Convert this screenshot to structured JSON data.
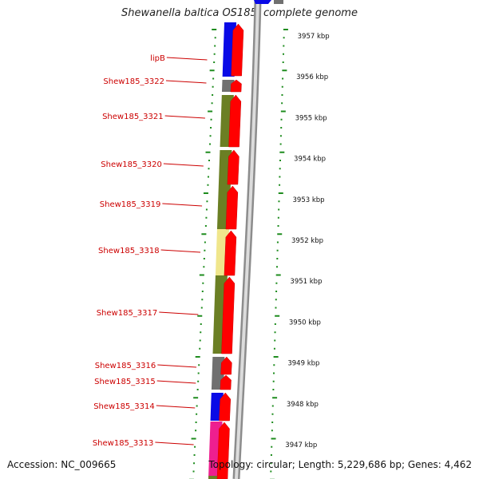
{
  "title": "Shewanella baltica OS185, complete genome",
  "accession_text": "Accession: NC_009665",
  "topology_text": "Topology: circular; Length: 5,229,686 bp; Genes: 4,462",
  "colors": {
    "blue": "#0a0ae6",
    "grey": "#707070",
    "olive": "#6b7f24",
    "khaki": "#f0e68c",
    "magenta": "#ee1f8f",
    "red": "#ff0000",
    "label_red": "#cc0000",
    "tick_green": "#1e8c1e"
  },
  "scale_ticks": [
    "3957 kbp",
    "3956 kbp",
    "3955 kbp",
    "3954 kbp",
    "3953 kbp",
    "3952 kbp",
    "3951 kbp",
    "3950 kbp",
    "3949 kbp",
    "3948 kbp",
    "3947 kbp"
  ],
  "genes": [
    {
      "label": "lipB",
      "color": "blue"
    },
    {
      "label": "Shew185_3322",
      "color": "grey"
    },
    {
      "label": "Shew185_3321",
      "color": "olive"
    },
    {
      "label": "Shew185_3320",
      "color": "olive"
    },
    {
      "label": "Shew185_3319",
      "color": "olive"
    },
    {
      "label": "Shew185_3318",
      "color": "khaki"
    },
    {
      "label": "Shew185_3317",
      "color": "olive"
    },
    {
      "label": "Shew185_3316",
      "color": "grey"
    },
    {
      "label": "Shew185_3315",
      "color": "grey"
    },
    {
      "label": "Shew185_3314",
      "color": "blue"
    },
    {
      "label": "Shew185_3313",
      "color": "magenta"
    }
  ]
}
